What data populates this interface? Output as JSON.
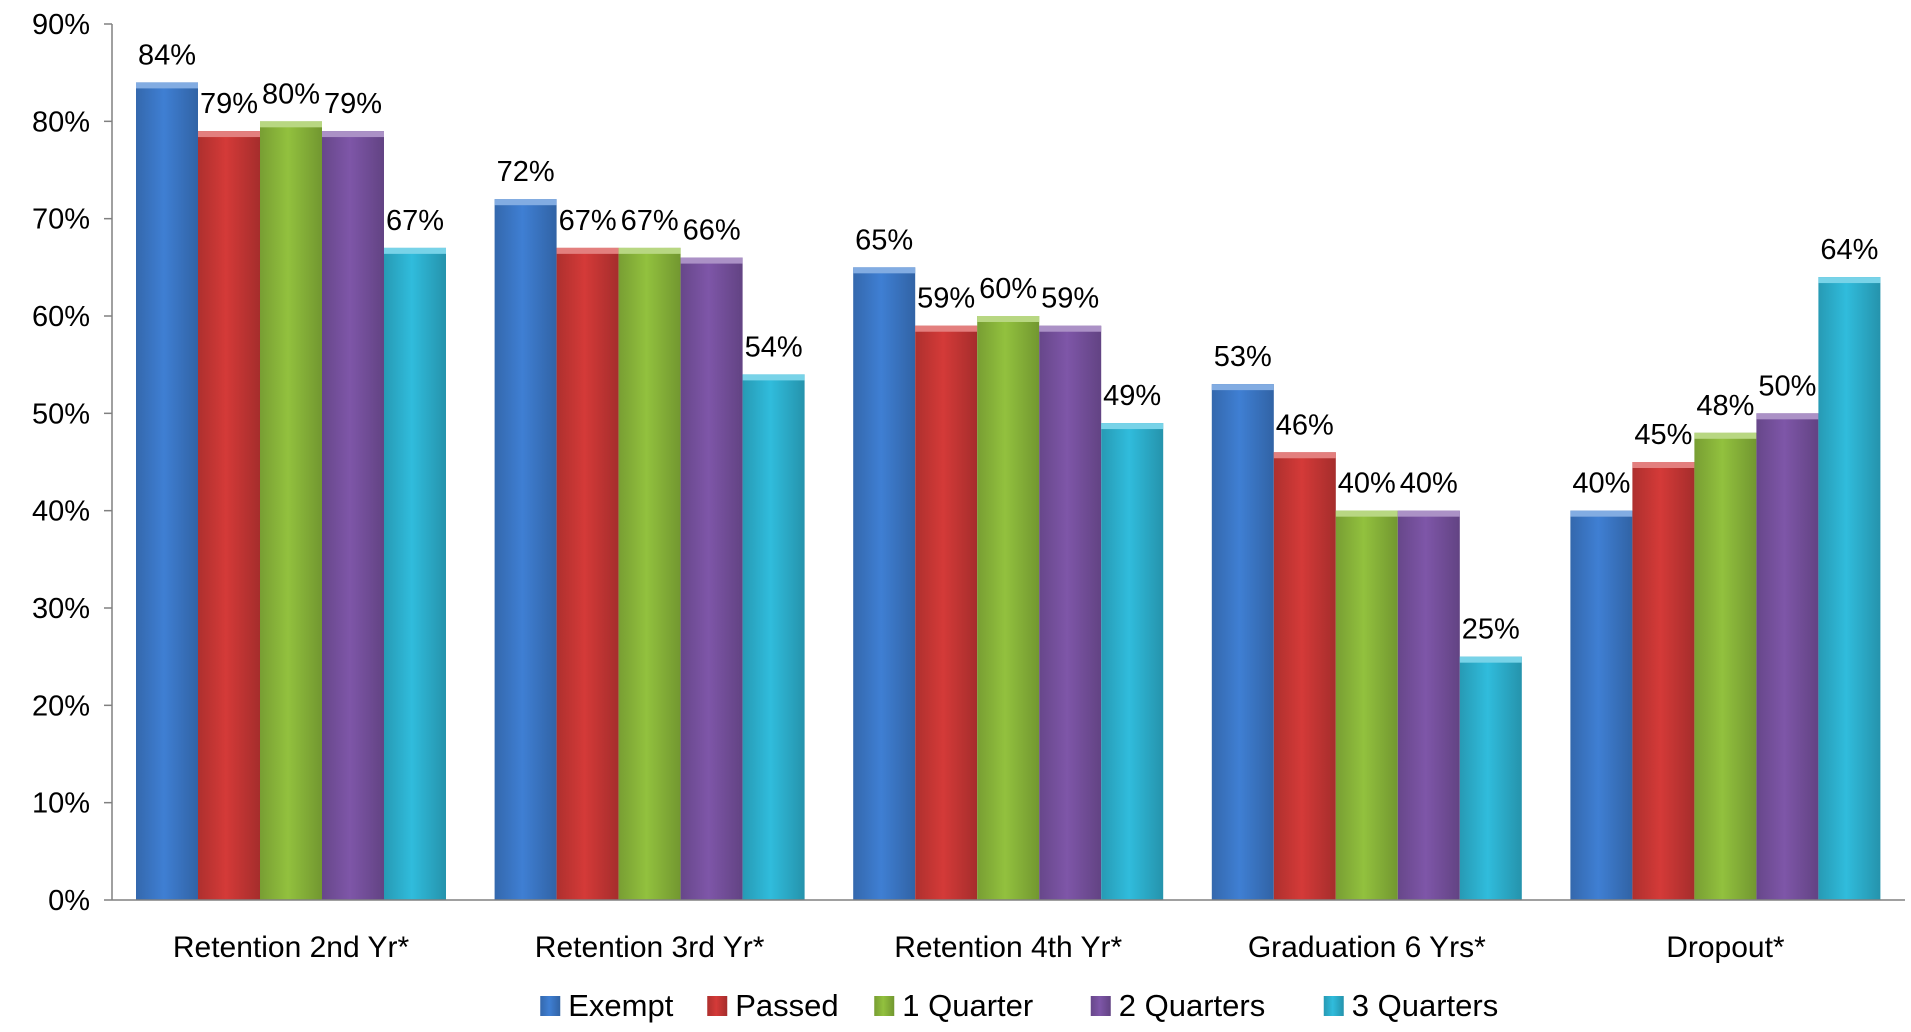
{
  "chart_data": {
    "type": "bar",
    "title": "",
    "xlabel": "",
    "ylabel": "",
    "ylim": [
      0,
      90
    ],
    "yticks": [
      0,
      10,
      20,
      30,
      40,
      50,
      60,
      70,
      80,
      90
    ],
    "ytick_format": "percent",
    "grid": false,
    "legend_position": "bottom",
    "categories": [
      "Retention 2nd Yr*",
      "Retention 3rd Yr*",
      "Retention 4th Yr*",
      "Graduation 6 Yrs*",
      "Dropout*"
    ],
    "series": [
      {
        "name": "Exempt",
        "color": "#3F7FD3",
        "values": [
          84,
          72,
          65,
          53,
          40
        ]
      },
      {
        "name": "Passed",
        "color": "#D43A38",
        "values": [
          79,
          67,
          59,
          46,
          45
        ]
      },
      {
        "name": "1 Quarter",
        "color": "#92C13E",
        "values": [
          80,
          67,
          60,
          40,
          48
        ]
      },
      {
        "name": "2 Quarters",
        "color": "#7E56A8",
        "values": [
          79,
          66,
          59,
          40,
          50
        ]
      },
      {
        "name": "3 Quarters",
        "color": "#30BCDC",
        "values": [
          67,
          54,
          49,
          25,
          64
        ]
      }
    ]
  }
}
